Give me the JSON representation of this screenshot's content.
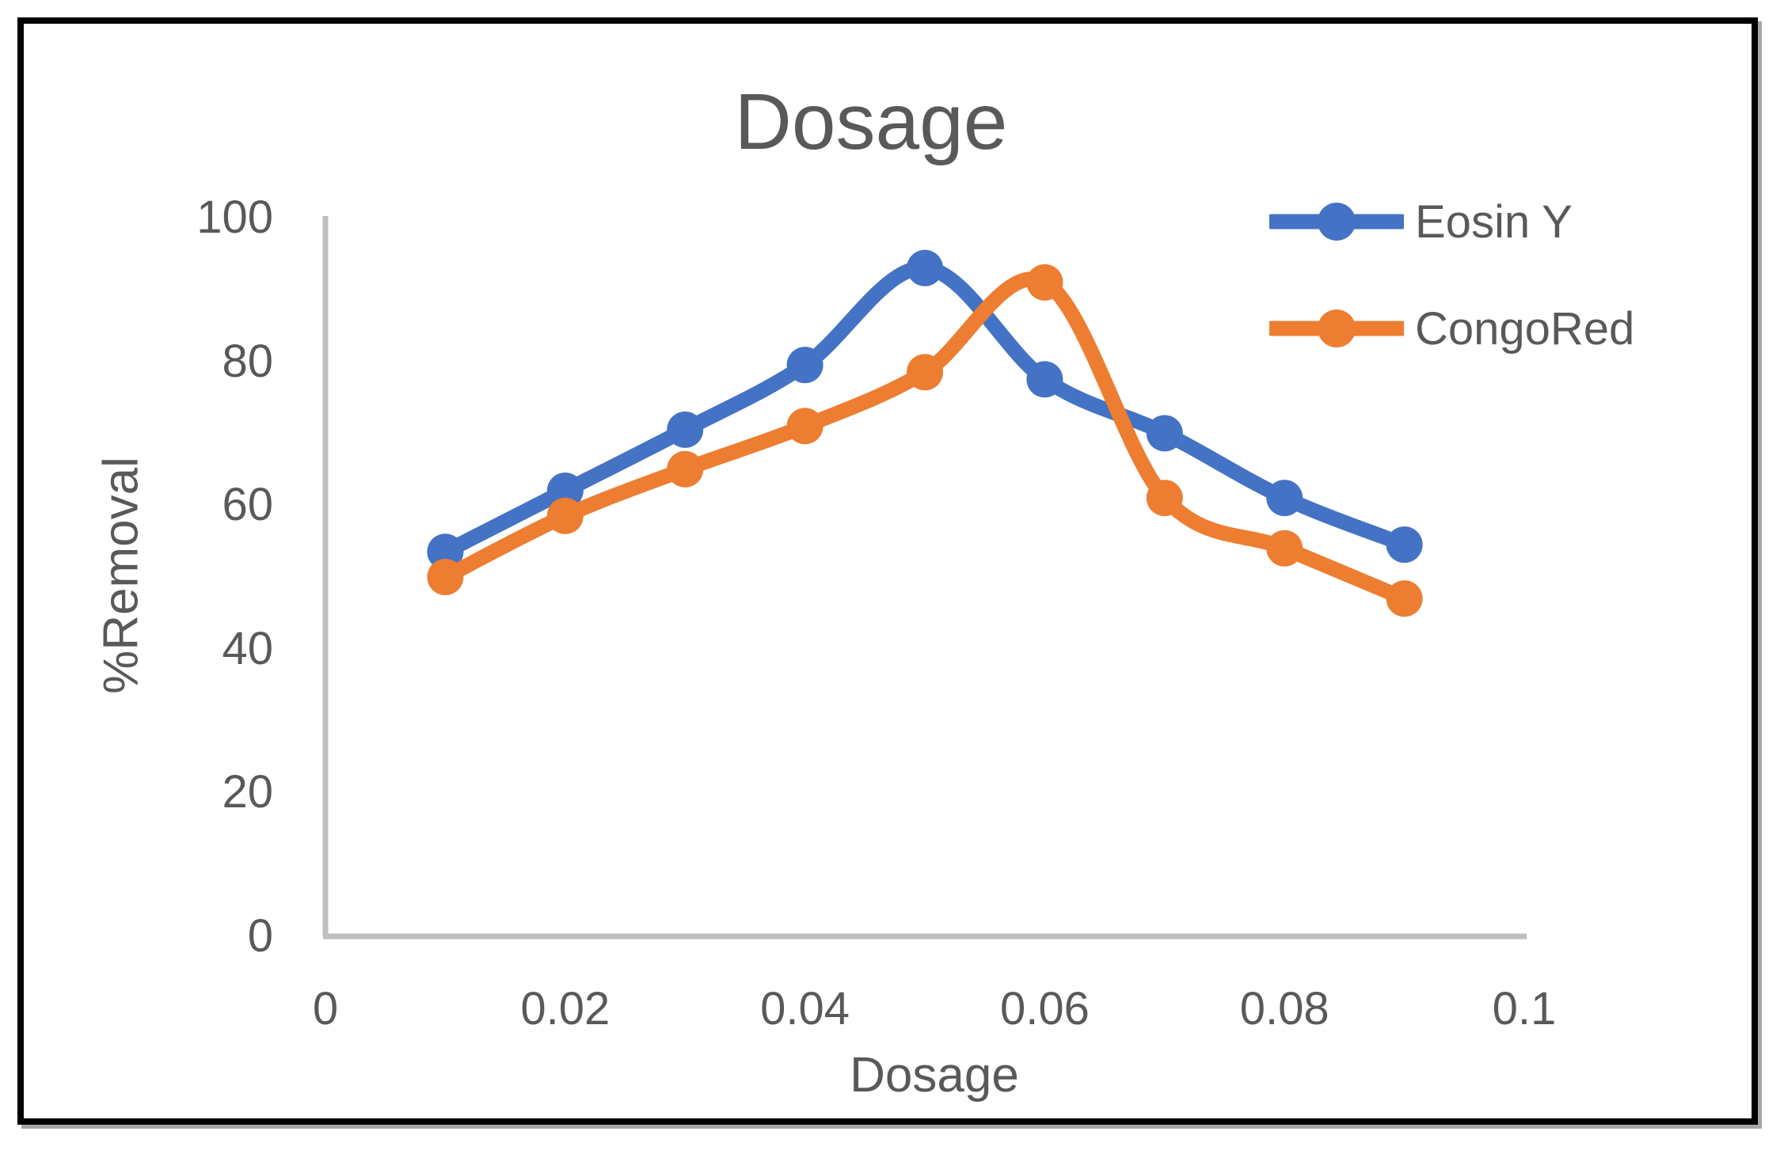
{
  "chart_data": {
    "type": "line",
    "title": "Dosage",
    "xlabel": "Dosage",
    "ylabel": "%Removal",
    "x": [
      0.01,
      0.02,
      0.03,
      0.04,
      0.05,
      0.06,
      0.07,
      0.08,
      0.09
    ],
    "series": [
      {
        "name": "Eosin Y",
        "color": "#4472C4",
        "values": [
          53.5,
          62,
          70.5,
          79.5,
          93,
          77.5,
          70,
          61,
          54.5
        ]
      },
      {
        "name": "CongoRed",
        "color": "#ED7D31",
        "values": [
          50,
          58.5,
          65,
          71,
          78.5,
          91,
          61,
          54,
          47
        ]
      }
    ],
    "xlim": [
      0,
      0.1
    ],
    "ylim": [
      0,
      100
    ],
    "x_ticks": [
      "0",
      "0.02",
      "0.04",
      "0.06",
      "0.08",
      "0.1"
    ],
    "y_ticks": [
      "0",
      "20",
      "40",
      "60",
      "80",
      "100"
    ],
    "grid": false,
    "smooth": true,
    "marker": "circle",
    "legend_position": "top-right",
    "text_color": "#595959",
    "axis_line_color": "#BFBFBF",
    "border_color": "#000000"
  }
}
